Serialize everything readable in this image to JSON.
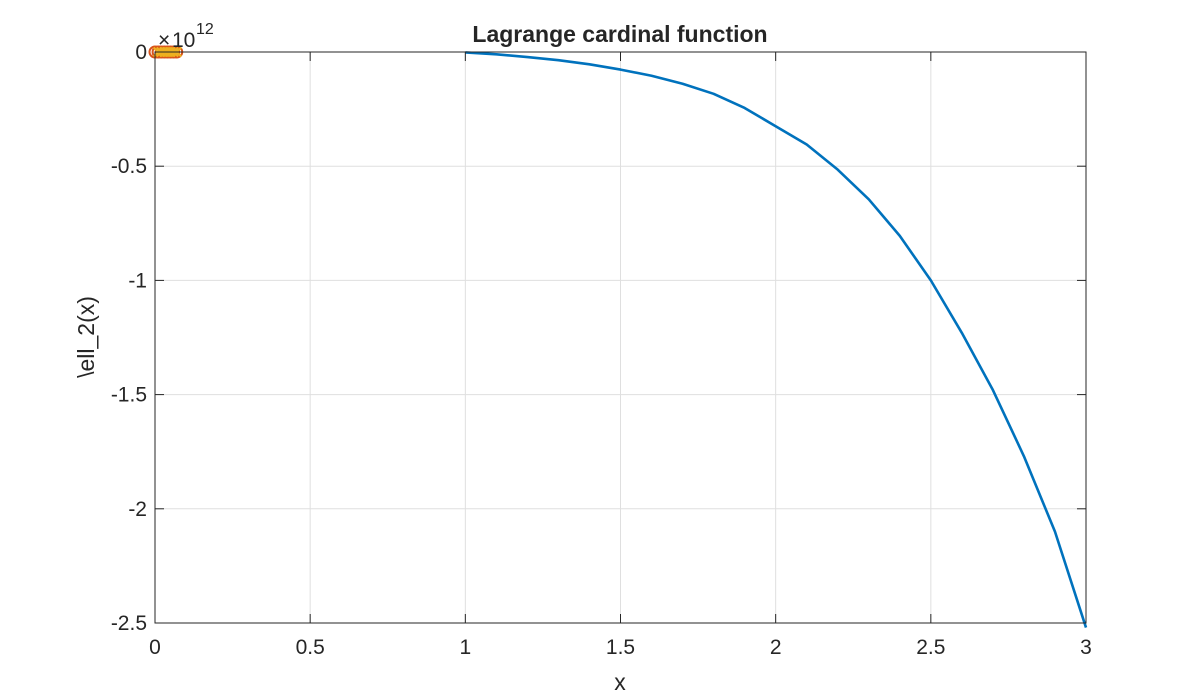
{
  "chart_data": {
    "type": "line",
    "title": "Lagrange cardinal function",
    "xlabel": "x",
    "ylabel": "\\ell_2(x)",
    "xlim": [
      0,
      3
    ],
    "ylim": [
      -2.5,
      0
    ],
    "y_exponent_base": "10",
    "y_exponent_power": "12",
    "y_scale_note": "y-axis values scaled by 10^12",
    "grid": true,
    "x_ticks": [
      0,
      0.5,
      1,
      1.5,
      2,
      2.5,
      3
    ],
    "x_tick_labels": [
      "0",
      "0.5",
      "1",
      "1.5",
      "2",
      "2.5",
      "3"
    ],
    "y_ticks": [
      0,
      -0.5,
      -1,
      -1.5,
      -2,
      -2.5
    ],
    "y_tick_labels": [
      "0",
      "-0.5",
      "-1",
      "-1.5",
      "-2",
      "-2.5"
    ],
    "colors": {
      "curve": "#0072BD",
      "markers_o": "#D95319",
      "markers_x": "#EDB120",
      "grid": "#dfdfdf",
      "axes": "#262626"
    },
    "series": [
      {
        "kind": "curve",
        "style": "line",
        "x": [
          1.0,
          1.1,
          1.2,
          1.3,
          1.4,
          1.5,
          1.6,
          1.7,
          1.8,
          1.9,
          2.0,
          2.1,
          2.2,
          2.3,
          2.4,
          2.5,
          2.6,
          2.7,
          2.8,
          2.9,
          3.0
        ],
        "y": [
          -0.002,
          -0.01,
          -0.022,
          -0.036,
          -0.054,
          -0.077,
          -0.104,
          -0.139,
          -0.183,
          -0.245,
          -0.325,
          -0.405,
          -0.515,
          -0.645,
          -0.805,
          -1.0,
          -1.23,
          -1.48,
          -1.77,
          -2.1,
          -2.52
        ]
      },
      {
        "kind": "nodes",
        "style": "o",
        "x": [
          0.0,
          0.01,
          0.02,
          0.03,
          0.04,
          0.05,
          0.06,
          0.07
        ],
        "y": [
          0,
          0,
          0,
          0,
          0,
          0,
          0,
          0
        ]
      },
      {
        "kind": "nodes",
        "style": "x",
        "x": [
          0.01,
          0.02,
          0.03,
          0.04,
          0.05,
          0.06,
          0.07
        ],
        "y": [
          0,
          0,
          0,
          0,
          0,
          0,
          0
        ]
      }
    ]
  }
}
